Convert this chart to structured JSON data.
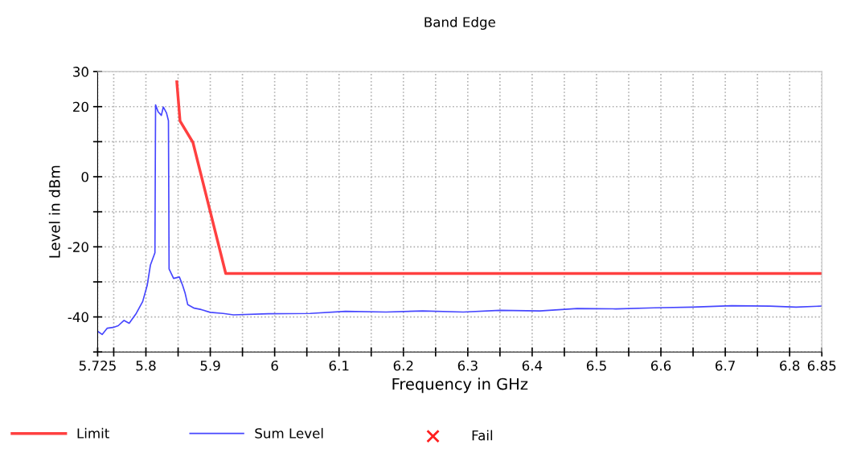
{
  "chart_data": {
    "type": "line",
    "title": "Band Edge",
    "xlabel": "Frequency in GHz",
    "ylabel": "Level in dBm",
    "xlim": [
      5.725,
      6.85
    ],
    "ylim": [
      -50,
      30
    ],
    "xticks": [
      5.725,
      {
        "value": 5.75,
        "label": null
      },
      5.8,
      {
        "value": 5.85,
        "label": null
      },
      5.9,
      {
        "value": 5.95,
        "label": null
      },
      6,
      {
        "value": 6.05,
        "label": null
      },
      6.1,
      {
        "value": 6.15,
        "label": null
      },
      6.2,
      {
        "value": 6.25,
        "label": null
      },
      6.3,
      {
        "value": 6.35,
        "label": null
      },
      6.4,
      {
        "value": 6.45,
        "label": null
      },
      6.5,
      {
        "value": 6.55,
        "label": null
      },
      6.6,
      {
        "value": 6.65,
        "label": null
      },
      6.7,
      {
        "value": 6.75,
        "label": null
      },
      6.8,
      6.85
    ],
    "yticks": [
      {
        "value": -50,
        "label": null
      },
      -40,
      {
        "value": -30,
        "label": null
      },
      -20,
      {
        "value": -10,
        "label": null
      },
      0,
      {
        "value": 10,
        "label": null
      },
      20,
      30
    ],
    "grid": true,
    "legend": "bottom left",
    "marker": "none",
    "line_style": "solid",
    "series": [
      {
        "name": "Limit",
        "color": "#ff4040",
        "x": [
          5.848,
          5.853,
          5.873,
          5.924,
          6.85
        ],
        "values": [
          27.1,
          15.9,
          9.8,
          -27.6,
          -27.6
        ]
      },
      {
        "name": "Sum Level",
        "color": "#4646ff",
        "x": [
          5.725,
          5.732,
          5.74,
          5.749,
          5.757,
          5.766,
          5.774,
          5.785,
          5.795,
          5.802,
          5.807,
          5.814,
          5.815,
          5.819,
          5.824,
          5.827,
          5.832,
          5.835,
          5.836,
          5.843,
          5.852,
          5.857,
          5.861,
          5.865,
          5.875,
          5.886,
          5.9,
          5.92,
          5.936,
          5.99,
          6.055,
          6.11,
          6.173,
          6.23,
          6.293,
          6.35,
          6.412,
          6.47,
          6.53,
          6.59,
          6.649,
          6.71,
          6.769,
          6.81,
          6.85
        ],
        "values": [
          -44.1,
          -45,
          -43.2,
          -43,
          -42.5,
          -41,
          -41.8,
          -39,
          -35.6,
          -31,
          -25.2,
          -21.7,
          20.5,
          18.5,
          17.5,
          19.9,
          18.2,
          16,
          -26.3,
          -29,
          -28.6,
          -31,
          -33.3,
          -36.5,
          -37.5,
          -37.9,
          -38.7,
          -39,
          -39.4,
          -39.1,
          -39,
          -38.4,
          -38.6,
          -38.3,
          -38.6,
          -38.1,
          -38.3,
          -37.6,
          -37.7,
          -37.4,
          -37.2,
          -36.8,
          -36.9,
          -37.2,
          -36.9
        ]
      }
    ],
    "annotations": [
      "Fail"
    ]
  }
}
